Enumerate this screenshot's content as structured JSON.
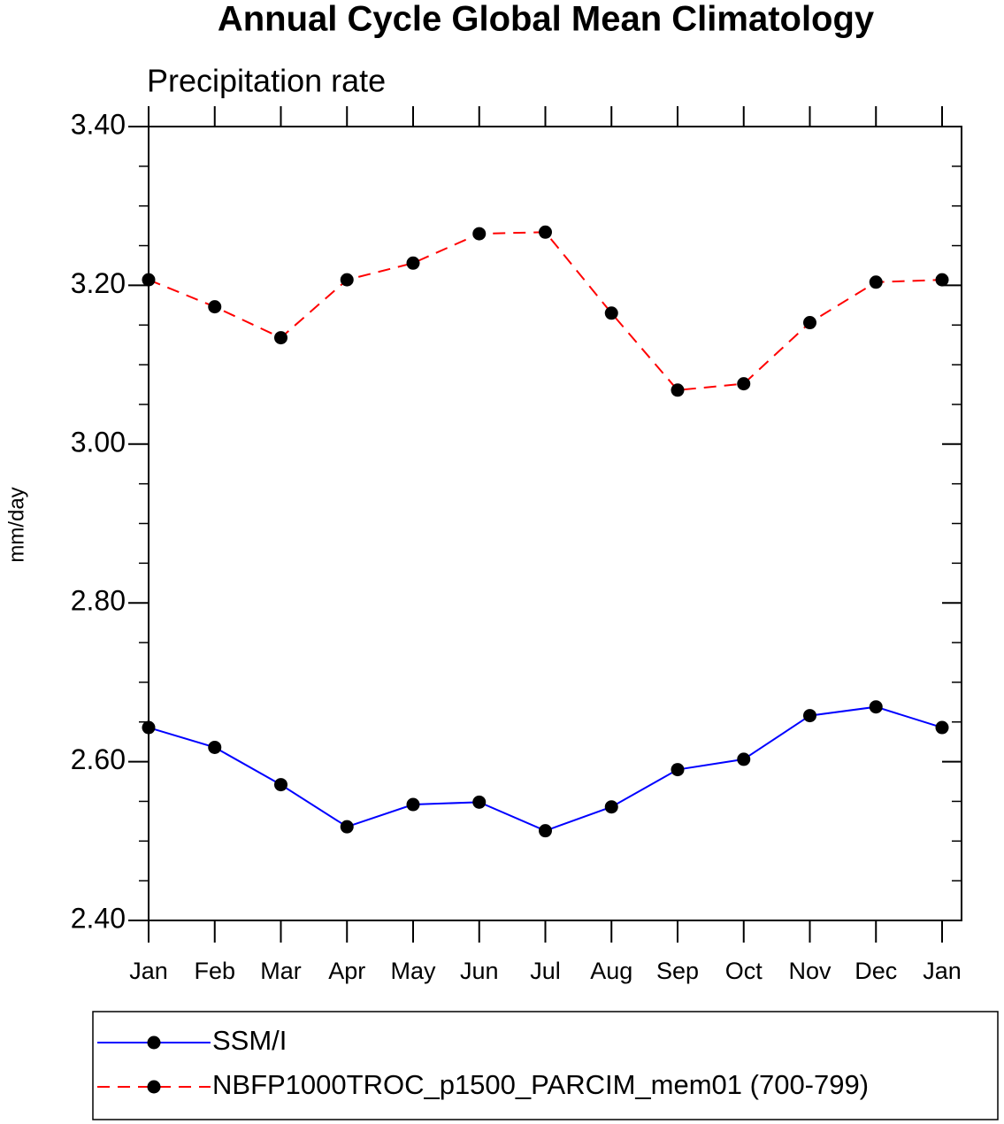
{
  "chart_data": {
    "type": "line",
    "title": "Annual Cycle Global Mean Climatology",
    "subtitle": "Precipitation rate",
    "y_label": "mm/day",
    "categories": [
      "Jan",
      "Feb",
      "Mar",
      "Apr",
      "May",
      "Jun",
      "Jul",
      "Aug",
      "Sep",
      "Oct",
      "Nov",
      "Dec",
      "Jan"
    ],
    "series": [
      {
        "name": "SSM/I",
        "color": "#0000ff",
        "dash": "solid",
        "values": [
          2.643,
          2.618,
          2.571,
          2.518,
          2.546,
          2.549,
          2.513,
          2.543,
          2.59,
          2.603,
          2.658,
          2.669,
          2.643
        ]
      },
      {
        "name": "NBFP1000TROC_p1500_PARCIM_mem01 (700-799)",
        "color": "#ff0000",
        "dash": "dashed",
        "values": [
          3.207,
          3.173,
          3.134,
          3.207,
          3.228,
          3.265,
          3.267,
          3.165,
          3.068,
          3.076,
          3.153,
          3.204,
          3.207
        ]
      }
    ],
    "ylim": [
      2.4,
      3.4
    ],
    "yticks": [
      {
        "value": 2.4,
        "label": "2.40"
      },
      {
        "value": 2.6,
        "label": "2.60"
      },
      {
        "value": 2.8,
        "label": "2.80"
      },
      {
        "value": 3.0,
        "label": "3.00"
      },
      {
        "value": 3.2,
        "label": "3.20"
      },
      {
        "value": 3.4,
        "label": "3.40"
      }
    ],
    "yminorticks": [
      2.45,
      2.5,
      2.55,
      2.65,
      2.7,
      2.75,
      2.85,
      2.9,
      2.95,
      3.05,
      3.1,
      3.15,
      3.25,
      3.3,
      3.35
    ],
    "grid": false,
    "legend": "bottom"
  }
}
